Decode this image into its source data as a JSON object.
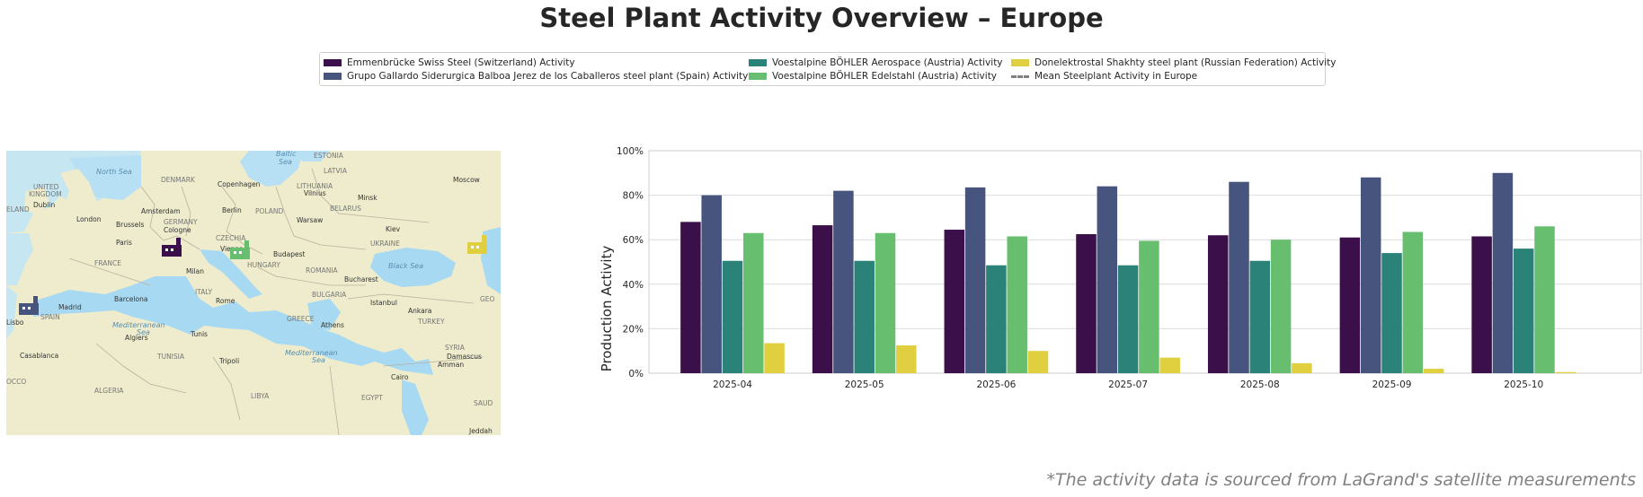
{
  "title": "Steel Plant Activity Overview – Europe",
  "footnote": "*The activity data is sourced from LaGrand's satellite measurements",
  "legend": {
    "items": [
      {
        "label": "Emmenbrücke Swiss Steel (Switzerland) Activity",
        "color": "#3b0f4a"
      },
      {
        "label": "Grupo Gallardo Siderurgica Balboa Jerez de los Caballeros steel plant (Spain) Activity",
        "color": "#46547e"
      },
      {
        "label": "Voestalpine BÖHLER Aerospace (Austria) Activity",
        "color": "#2a8278"
      },
      {
        "label": "Voestalpine BÖHLER Edelstahl (Austria) Activity",
        "color": "#68be6f"
      },
      {
        "label": "Donelektrostal Shakhty steel plant (Russian Federation) Activity",
        "color": "#e0d040"
      },
      {
        "label": "Mean Steelplant Activity in Europe",
        "color": "#808080"
      }
    ]
  },
  "map": {
    "seas": [
      {
        "label": "Baltic"
      },
      {
        "label": "Sea"
      },
      {
        "label": "North Sea"
      },
      {
        "label": "Mediterranean"
      },
      {
        "label": "Sea"
      },
      {
        "label": "Mediterranean"
      },
      {
        "label": "Sea"
      },
      {
        "label": "Black Sea"
      }
    ],
    "cities": [
      {
        "label": "ESTONIA"
      },
      {
        "label": "Moscow"
      },
      {
        "label": "LATVIA"
      },
      {
        "label": "DENMARK"
      },
      {
        "label": "Copenhagen"
      },
      {
        "label": "LITHUANIA"
      },
      {
        "label": "Vilnius"
      },
      {
        "label": "Minsk"
      },
      {
        "label": "UNITED"
      },
      {
        "label": "KINGDOM"
      },
      {
        "label": "Dublin"
      },
      {
        "label": "ELAND"
      },
      {
        "label": "Amsterdam"
      },
      {
        "label": "Berlin"
      },
      {
        "label": "POLAND"
      },
      {
        "label": "BELARUS"
      },
      {
        "label": "London"
      },
      {
        "label": "Brussels"
      },
      {
        "label": "GERMANY"
      },
      {
        "label": "Warsaw"
      },
      {
        "label": "Cologne"
      },
      {
        "label": "Kiev"
      },
      {
        "label": "Paris"
      },
      {
        "label": "CZECHIA"
      },
      {
        "label": "UKRAINE"
      },
      {
        "label": "Vienna"
      },
      {
        "label": "Budapest"
      },
      {
        "label": "FRANCE"
      },
      {
        "label": "HUNGARY"
      },
      {
        "label": "Milan"
      },
      {
        "label": "ROMANIA"
      },
      {
        "label": "Bucharest"
      },
      {
        "label": "Barcelona"
      },
      {
        "label": "ITALY"
      },
      {
        "label": "Rome"
      },
      {
        "label": "BULGARIA"
      },
      {
        "label": "Madrid"
      },
      {
        "label": "Istanbul"
      },
      {
        "label": "GEO"
      },
      {
        "label": "Lisbo"
      },
      {
        "label": "SPAIN"
      },
      {
        "label": "Ankara"
      },
      {
        "label": "GREECE"
      },
      {
        "label": "TURKEY"
      },
      {
        "label": "Algiers"
      },
      {
        "label": "Tunis"
      },
      {
        "label": "Athens"
      },
      {
        "label": "SYRIA"
      },
      {
        "label": "Casablanca"
      },
      {
        "label": "TUNISIA"
      },
      {
        "label": "Tripoli"
      },
      {
        "label": "Damascus"
      },
      {
        "label": "Amman"
      },
      {
        "label": "OCCO"
      },
      {
        "label": "Cairo"
      },
      {
        "label": "ALGERIA"
      },
      {
        "label": "LIBYA"
      },
      {
        "label": "EGYPT"
      },
      {
        "label": "SAUD"
      },
      {
        "label": "Jeddah"
      }
    ],
    "plants": [
      {
        "name": "Emmenbrücke Swiss Steel",
        "color": "#3b0f4a"
      },
      {
        "name": "Voestalpine BÖHLER Edelstahl",
        "color": "#68be6f"
      },
      {
        "name": "Donelektrostal Shakhty steel plant",
        "color": "#e0d040"
      },
      {
        "name": "Grupo Gallardo Siderurgica Balboa",
        "color": "#46547e"
      }
    ]
  },
  "chart_data": {
    "type": "bar",
    "title": "",
    "xlabel": "",
    "ylabel": "Production Activity",
    "ylim": [
      0,
      100
    ],
    "yticks": [
      0,
      20,
      40,
      60,
      80,
      100
    ],
    "ytick_labels": [
      "0%",
      "20%",
      "40%",
      "60%",
      "80%",
      "100%"
    ],
    "grid": true,
    "categories": [
      "2025-04",
      "2025-05",
      "2025-06",
      "2025-07",
      "2025-08",
      "2025-09",
      "2025-10"
    ],
    "series": [
      {
        "name": "Emmenbrücke Swiss Steel (Switzerland) Activity",
        "color": "#3b0f4a",
        "values": [
          68,
          66.5,
          64.5,
          62.5,
          62,
          61,
          61.5
        ]
      },
      {
        "name": "Grupo Gallardo Siderurgica Balboa Jerez de los Caballeros steel plant (Spain) Activity",
        "color": "#46547e",
        "values": [
          80,
          82,
          83.5,
          84,
          86,
          88,
          90
        ]
      },
      {
        "name": "Voestalpine BÖHLER Aerospace (Austria) Activity",
        "color": "#2a8278",
        "values": [
          50.5,
          50.5,
          48.5,
          48.5,
          50.5,
          54,
          56
        ]
      },
      {
        "name": "Voestalpine BÖHLER Edelstahl (Austria) Activity",
        "color": "#68be6f",
        "values": [
          63,
          63,
          61.5,
          59.5,
          60,
          63.5,
          66
        ]
      },
      {
        "name": "Donelektrostal Shakhty steel plant (Russian Federation) Activity",
        "color": "#e0d040",
        "values": [
          13.5,
          12.5,
          10,
          7,
          4.5,
          2,
          0.5
        ]
      }
    ]
  }
}
